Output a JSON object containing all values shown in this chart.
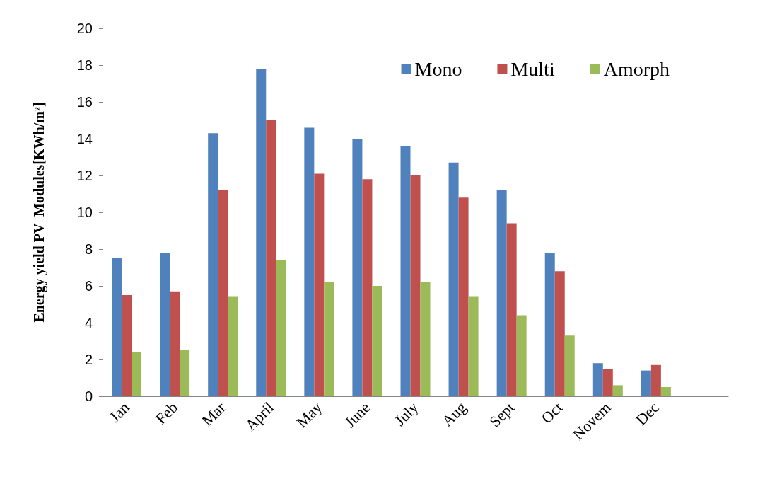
{
  "chart_data": {
    "type": "bar",
    "ylabel": "Energy yield PV  Modules[KWh/m²]",
    "categories": [
      "Jan",
      "Feb",
      "Mar",
      "April",
      "May",
      "June",
      "July",
      "Aug",
      "Sept",
      "Oct",
      "Novem",
      "Dec",
      null
    ],
    "series": [
      {
        "name": "Mono",
        "color": "#4f81bd",
        "values": [
          7.5,
          7.8,
          14.3,
          17.8,
          14.6,
          14.0,
          13.6,
          12.7,
          11.2,
          7.8,
          1.8,
          1.4,
          null
        ]
      },
      {
        "name": "Multi",
        "color": "#c0504d",
        "values": [
          5.5,
          5.7,
          11.2,
          15.0,
          12.1,
          11.8,
          12.0,
          10.8,
          9.4,
          6.8,
          1.5,
          1.7,
          null
        ]
      },
      {
        "name": "Amorph",
        "color": "#9bbb59",
        "values": [
          2.4,
          2.5,
          5.4,
          7.4,
          6.2,
          6.0,
          6.2,
          5.4,
          4.4,
          3.3,
          0.6,
          0.5,
          null
        ]
      }
    ],
    "ylim": [
      0,
      20
    ],
    "yticks": [
      0,
      2,
      4,
      6,
      8,
      10,
      12,
      14,
      16,
      18,
      20
    ],
    "grid": false,
    "legend": "top right"
  }
}
